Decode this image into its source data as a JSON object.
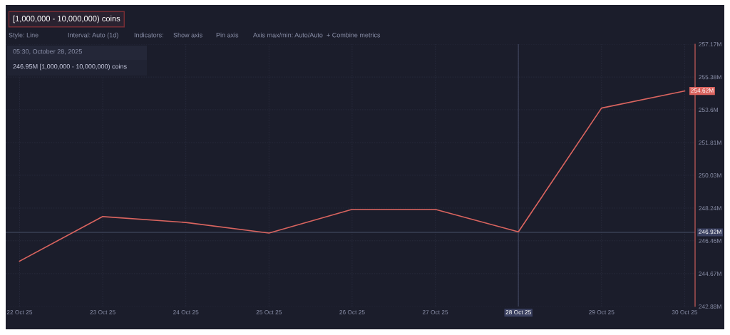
{
  "chart_data": {
    "type": "line",
    "title": "[1,000,000 - 10,000,000) coins",
    "annotations": [
      "Style: Line",
      "Interval: Auto (1d)",
      "Indicators:",
      "Show axis",
      "Pin axis",
      "Axis max/min: Auto/Auto",
      "+ Combine metrics",
      "05:30, October 28, 2025",
      "246.95M [1,000,000 - 10,000,000) coins"
    ],
    "x": [
      "2025-10-22",
      "2025-10-23",
      "2025-10-24",
      "2025-10-25",
      "2025-10-26",
      "2025-10-27",
      "2025-10-28",
      "2025-10-29",
      "2025-10-30"
    ],
    "series": [
      {
        "color": "#d9645f",
        "values": [
          245.35,
          247.78,
          247.46,
          246.88,
          248.17,
          248.17,
          246.95,
          253.69,
          254.62
        ],
        "value_labels": [
          null,
          null,
          null,
          null,
          null,
          null,
          null,
          null,
          "254.62M"
        ]
      }
    ],
    "xlim": [
      "2025-10-21T20:00",
      "2025-10-30T03:00"
    ],
    "xticks": [
      {
        "value": "2025-10-22",
        "label": "22 Oct 25"
      },
      {
        "value": "2025-10-23",
        "label": "23 Oct 25"
      },
      {
        "value": "2025-10-24",
        "label": "24 Oct 25"
      },
      {
        "value": "2025-10-25",
        "label": "25 Oct 25"
      },
      {
        "value": "2025-10-26",
        "label": "26 Oct 25"
      },
      {
        "value": "2025-10-27",
        "label": "27 Oct 25"
      },
      {
        "value": "2025-10-28",
        "label": "28 Oct 25"
      },
      {
        "value": "2025-10-29",
        "label": "29 Oct 25"
      },
      {
        "value": "2025-10-30",
        "label": "30 Oct 25"
      }
    ],
    "ylim": [
      242.88,
      257.17
    ],
    "yticks": [
      {
        "value": 242.88,
        "label": "242.88M"
      },
      {
        "value": 244.67,
        "label": "244.67M"
      },
      {
        "value": 246.46,
        "label": "246.46M"
      },
      {
        "value": 248.24,
        "label": "248.24M"
      },
      {
        "value": 250.03,
        "label": "250.03M"
      },
      {
        "value": 251.81,
        "label": "251.81M"
      },
      {
        "value": 253.6,
        "label": "253.6M"
      },
      {
        "value": 255.38,
        "label": "255.38M"
      },
      {
        "value": 257.17,
        "label": "257.17M"
      }
    ],
    "ref_lines": [
      {
        "axis": "y",
        "value": 246.92,
        "label": "246.92M",
        "color": "#3a3f55"
      },
      {
        "axis": "x",
        "value": "2025-10-28",
        "color": "#3a3f55"
      }
    ],
    "grid": true,
    "legend": false,
    "marker": "none",
    "line_style": "solid"
  }
}
